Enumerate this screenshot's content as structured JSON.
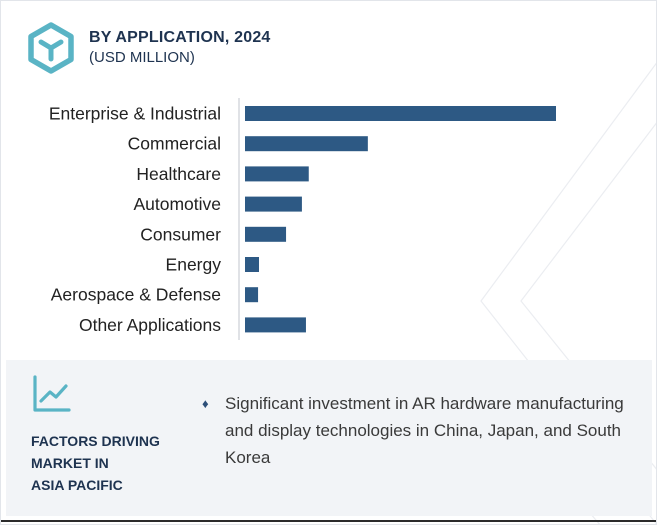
{
  "header": {
    "title": "BY APPLICATION, 2024",
    "subtitle": "(USD MILLION)",
    "icon": "cube-logo-icon",
    "icon_color": "#5ab4c5"
  },
  "chart_data": {
    "type": "bar",
    "orientation": "horizontal",
    "categories": [
      "Enterprise & Industrial",
      "Commercial",
      "Healthcare",
      "Automotive",
      "Consumer",
      "Energy",
      "Aerospace & Defense",
      "Other Applications"
    ],
    "values": [
      100,
      39.5,
      20.5,
      18.3,
      13.2,
      4.5,
      4.2,
      19.6
    ],
    "title": "BY APPLICATION, 2024",
    "xlabel": "",
    "ylabel": "",
    "xlim": [
      0,
      100
    ],
    "grid": false,
    "legend": "none",
    "bar_color": "#2d5984"
  },
  "panel": {
    "icon": "trend-chart-icon",
    "heading": [
      "FACTORS DRIVING",
      "MARKET IN",
      "ASIA PACIFIC"
    ],
    "bullet": "♦",
    "text": "Significant investment in AR hardware manufacturing and display technologies in China, Japan, and South Korea"
  }
}
